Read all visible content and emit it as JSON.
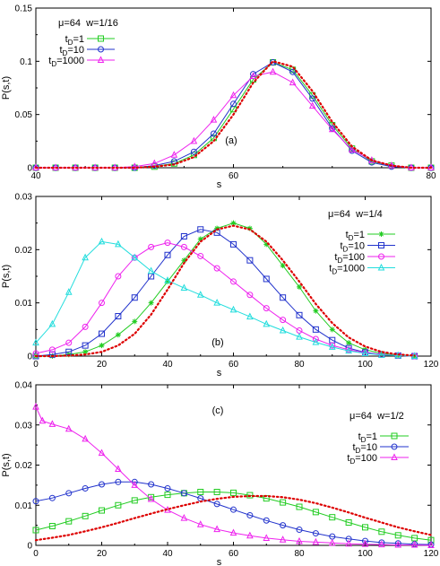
{
  "chart_data": [
    {
      "type": "line",
      "panel_label": "(a)",
      "annotation": "μ=64  w=1/16",
      "xlabel": "s",
      "ylabel": "P(s,t)",
      "xlim": [
        40,
        80
      ],
      "ylim": [
        0,
        0.15
      ],
      "xticks": [
        "40",
        "60",
        "80"
      ],
      "yticks": [
        "0",
        "0.05",
        "0.1",
        "0.15"
      ],
      "legend_placement": "top-left",
      "series": [
        {
          "name": "t_D=1",
          "label_main": "t",
          "label_sub": "D",
          "label_rest": "=1",
          "color": "#22cc22",
          "marker": "square",
          "x": [
            40,
            42,
            44,
            46,
            48,
            50,
            52,
            54,
            56,
            58,
            60,
            62,
            64,
            66,
            68,
            70,
            72,
            74,
            76,
            78,
            80
          ],
          "y": [
            0,
            0,
            0,
            0,
            0,
            0,
            0.001,
            0.004,
            0.012,
            0.028,
            0.055,
            0.083,
            0.099,
            0.092,
            0.068,
            0.04,
            0.018,
            0.006,
            0.002,
            0,
            0
          ]
        },
        {
          "name": "t_D=10",
          "label_main": "t",
          "label_sub": "D",
          "label_rest": "=10",
          "color": "#2233cc",
          "marker": "circle",
          "x": [
            40,
            42,
            44,
            46,
            48,
            50,
            52,
            54,
            56,
            58,
            60,
            62,
            64,
            66,
            68,
            70,
            72,
            74,
            76,
            78,
            80
          ],
          "y": [
            0,
            0,
            0,
            0,
            0,
            0,
            0.002,
            0.006,
            0.015,
            0.032,
            0.06,
            0.088,
            0.099,
            0.09,
            0.065,
            0.037,
            0.016,
            0.005,
            0.001,
            0,
            0
          ]
        },
        {
          "name": "t_D=1000",
          "label_main": "t",
          "label_sub": "D",
          "label_rest": "=1000",
          "color": "#ee22ee",
          "marker": "triangle",
          "x": [
            40,
            42,
            44,
            46,
            48,
            50,
            52,
            54,
            56,
            58,
            60,
            62,
            64,
            66,
            68,
            70,
            72,
            74,
            76,
            78,
            80
          ],
          "y": [
            0,
            0,
            0,
            0,
            0,
            0.001,
            0.004,
            0.012,
            0.025,
            0.045,
            0.068,
            0.086,
            0.09,
            0.08,
            0.058,
            0.036,
            0.017,
            0.007,
            0.002,
            0,
            0
          ]
        },
        {
          "name": "",
          "color": "#dd0000",
          "style": "dotted",
          "x": [
            40,
            42,
            44,
            46,
            48,
            50,
            52,
            54,
            56,
            58,
            60,
            62,
            64,
            66,
            68,
            70,
            72,
            74,
            76,
            78,
            80
          ],
          "y": [
            0,
            0,
            0,
            0,
            0,
            0,
            0.001,
            0.003,
            0.01,
            0.025,
            0.05,
            0.08,
            0.1,
            0.095,
            0.072,
            0.043,
            0.02,
            0.007,
            0.002,
            0,
            0
          ]
        }
      ]
    },
    {
      "type": "line",
      "panel_label": "(b)",
      "annotation": "μ=64  w=1/4",
      "xlabel": "s",
      "ylabel": "P(s,t)",
      "xlim": [
        0,
        120
      ],
      "ylim": [
        0,
        0.03
      ],
      "xticks": [
        "0",
        "20",
        "40",
        "60",
        "80",
        "100",
        "120"
      ],
      "yticks": [
        "0",
        "0.01",
        "0.02",
        "0.03"
      ],
      "legend_placement": "top-right",
      "series": [
        {
          "name": "t_D=1",
          "label_main": "t",
          "label_sub": "D",
          "label_rest": "=1",
          "color": "#22cc22",
          "marker": "star",
          "x": [
            0,
            5,
            10,
            15,
            20,
            25,
            30,
            35,
            40,
            45,
            50,
            55,
            60,
            65,
            70,
            75,
            80,
            85,
            90,
            95,
            100,
            105,
            110,
            115
          ],
          "y": [
            0,
            0,
            0.0003,
            0.0008,
            0.002,
            0.004,
            0.0065,
            0.01,
            0.014,
            0.018,
            0.022,
            0.024,
            0.025,
            0.024,
            0.021,
            0.017,
            0.013,
            0.0085,
            0.005,
            0.0025,
            0.0012,
            0.0005,
            0.0002,
            0
          ]
        },
        {
          "name": "t_D=10",
          "label_main": "t",
          "label_sub": "D",
          "label_rest": "=10",
          "color": "#2233cc",
          "marker": "square",
          "x": [
            0,
            5,
            10,
            15,
            20,
            25,
            30,
            35,
            40,
            45,
            50,
            55,
            60,
            65,
            70,
            75,
            80,
            85,
            90,
            95,
            100,
            105,
            110,
            115
          ],
          "y": [
            0,
            0.0003,
            0.0008,
            0.002,
            0.0042,
            0.0075,
            0.011,
            0.015,
            0.019,
            0.0225,
            0.0238,
            0.0232,
            0.021,
            0.018,
            0.0145,
            0.011,
            0.0077,
            0.005,
            0.003,
            0.0015,
            0.0007,
            0.0003,
            0.0001,
            0
          ]
        },
        {
          "name": "t_D=100",
          "label_main": "t",
          "label_sub": "D",
          "label_rest": "=100",
          "color": "#ee22ee",
          "marker": "circle",
          "x": [
            0,
            5,
            10,
            15,
            20,
            25,
            30,
            35,
            40,
            45,
            50,
            55,
            60,
            65,
            70,
            75,
            80,
            85,
            90,
            95,
            100,
            105,
            110,
            115
          ],
          "y": [
            0.0005,
            0.0012,
            0.0025,
            0.0055,
            0.01,
            0.015,
            0.0185,
            0.0205,
            0.0213,
            0.0205,
            0.0188,
            0.0165,
            0.014,
            0.0115,
            0.009,
            0.0068,
            0.0048,
            0.0032,
            0.002,
            0.0012,
            0.0006,
            0.0003,
            0.0001,
            0
          ]
        },
        {
          "name": "t_D=1000",
          "label_main": "t",
          "label_sub": "D",
          "label_rest": "=1000",
          "color": "#22dddd",
          "marker": "triangle",
          "x": [
            0,
            5,
            10,
            15,
            20,
            25,
            30,
            35,
            40,
            45,
            50,
            55,
            60,
            65,
            70,
            75,
            80,
            85,
            90,
            95,
            100,
            105,
            110,
            115
          ],
          "y": [
            0.0025,
            0.006,
            0.012,
            0.0185,
            0.0215,
            0.021,
            0.0185,
            0.016,
            0.0142,
            0.0128,
            0.0115,
            0.01,
            0.0087,
            0.0074,
            0.006,
            0.0048,
            0.0036,
            0.0026,
            0.0017,
            0.001,
            0.0005,
            0.0002,
            0.0001,
            0
          ]
        },
        {
          "name": "",
          "color": "#dd0000",
          "style": "dotted",
          "x": [
            0,
            5,
            10,
            15,
            20,
            25,
            30,
            35,
            40,
            45,
            50,
            55,
            60,
            65,
            70,
            75,
            80,
            85,
            90,
            95,
            100,
            105,
            110,
            115
          ],
          "y": [
            0,
            0,
            0.0001,
            0.0003,
            0.0008,
            0.002,
            0.0042,
            0.0078,
            0.0125,
            0.0175,
            0.0215,
            0.0238,
            0.0245,
            0.0238,
            0.0215,
            0.018,
            0.014,
            0.0098,
            0.0062,
            0.0035,
            0.0018,
            0.0008,
            0.0003,
            0.0001
          ]
        }
      ]
    },
    {
      "type": "line",
      "panel_label": "(c)",
      "annotation": "μ=64  w=1/2",
      "xlabel": "s",
      "ylabel": "P(s,t)",
      "xlim": [
        0,
        120
      ],
      "ylim": [
        0,
        0.04
      ],
      "xticks": [
        "0",
        "20",
        "40",
        "60",
        "80",
        "100",
        "120"
      ],
      "yticks": [
        "0",
        "0.01",
        "0.02",
        "0.03",
        "0.04"
      ],
      "legend_placement": "top-right",
      "series": [
        {
          "name": "t_D=1",
          "label_main": "t",
          "label_sub": "D",
          "label_rest": "=1",
          "color": "#22cc22",
          "marker": "square",
          "x": [
            0,
            5,
            10,
            15,
            20,
            25,
            30,
            35,
            40,
            45,
            50,
            55,
            60,
            65,
            70,
            75,
            80,
            85,
            90,
            95,
            100,
            105,
            110,
            115,
            120
          ],
          "y": [
            0.0038,
            0.0048,
            0.006,
            0.0073,
            0.0087,
            0.01,
            0.0112,
            0.012,
            0.0126,
            0.013,
            0.0133,
            0.0133,
            0.0131,
            0.0125,
            0.0117,
            0.0107,
            0.0096,
            0.0083,
            0.007,
            0.0057,
            0.0045,
            0.0034,
            0.0025,
            0.0018,
            0.0013
          ]
        },
        {
          "name": "t_D=10",
          "label_main": "t",
          "label_sub": "D",
          "label_rest": "=10",
          "color": "#2233cc",
          "marker": "circle",
          "x": [
            0,
            5,
            10,
            15,
            20,
            25,
            30,
            35,
            40,
            45,
            50,
            55,
            60,
            65,
            70,
            75,
            80,
            85,
            90,
            95,
            100,
            105,
            110,
            115,
            120
          ],
          "y": [
            0.011,
            0.0118,
            0.013,
            0.0142,
            0.0152,
            0.0158,
            0.0158,
            0.0152,
            0.0142,
            0.013,
            0.0117,
            0.0103,
            0.0089,
            0.0075,
            0.0062,
            0.005,
            0.0039,
            0.003,
            0.0022,
            0.0016,
            0.0011,
            0.0007,
            0.0005,
            0.0003,
            0.0002
          ]
        },
        {
          "name": "t_D=100",
          "label_main": "t",
          "label_sub": "D",
          "label_rest": "=100",
          "color": "#ee22ee",
          "marker": "triangle",
          "x": [
            0,
            2,
            5,
            10,
            15,
            20,
            25,
            30,
            35,
            40,
            45,
            50,
            55,
            60,
            65,
            70,
            75,
            80,
            85,
            90,
            95,
            100,
            105,
            110,
            115,
            120
          ],
          "y": [
            0.0345,
            0.031,
            0.0302,
            0.029,
            0.0265,
            0.023,
            0.019,
            0.015,
            0.0115,
            0.0088,
            0.0068,
            0.0052,
            0.004,
            0.0031,
            0.0024,
            0.0018,
            0.0014,
            0.001,
            0.0008,
            0.0006,
            0.0004,
            0.0003,
            0.0002,
            0.0001,
            0.0001,
            0
          ]
        },
        {
          "name": "",
          "color": "#dd0000",
          "style": "dotted",
          "x": [
            0,
            5,
            10,
            15,
            20,
            25,
            30,
            35,
            40,
            45,
            50,
            55,
            60,
            65,
            70,
            75,
            80,
            85,
            90,
            95,
            100,
            105,
            110,
            115,
            120
          ],
          "y": [
            0.0013,
            0.0019,
            0.0026,
            0.0035,
            0.0045,
            0.0056,
            0.0068,
            0.0079,
            0.009,
            0.01,
            0.0109,
            0.0116,
            0.0121,
            0.0123,
            0.0123,
            0.012,
            0.0114,
            0.0105,
            0.0094,
            0.0082,
            0.0069,
            0.0057,
            0.0045,
            0.0035,
            0.0026
          ]
        }
      ]
    }
  ]
}
